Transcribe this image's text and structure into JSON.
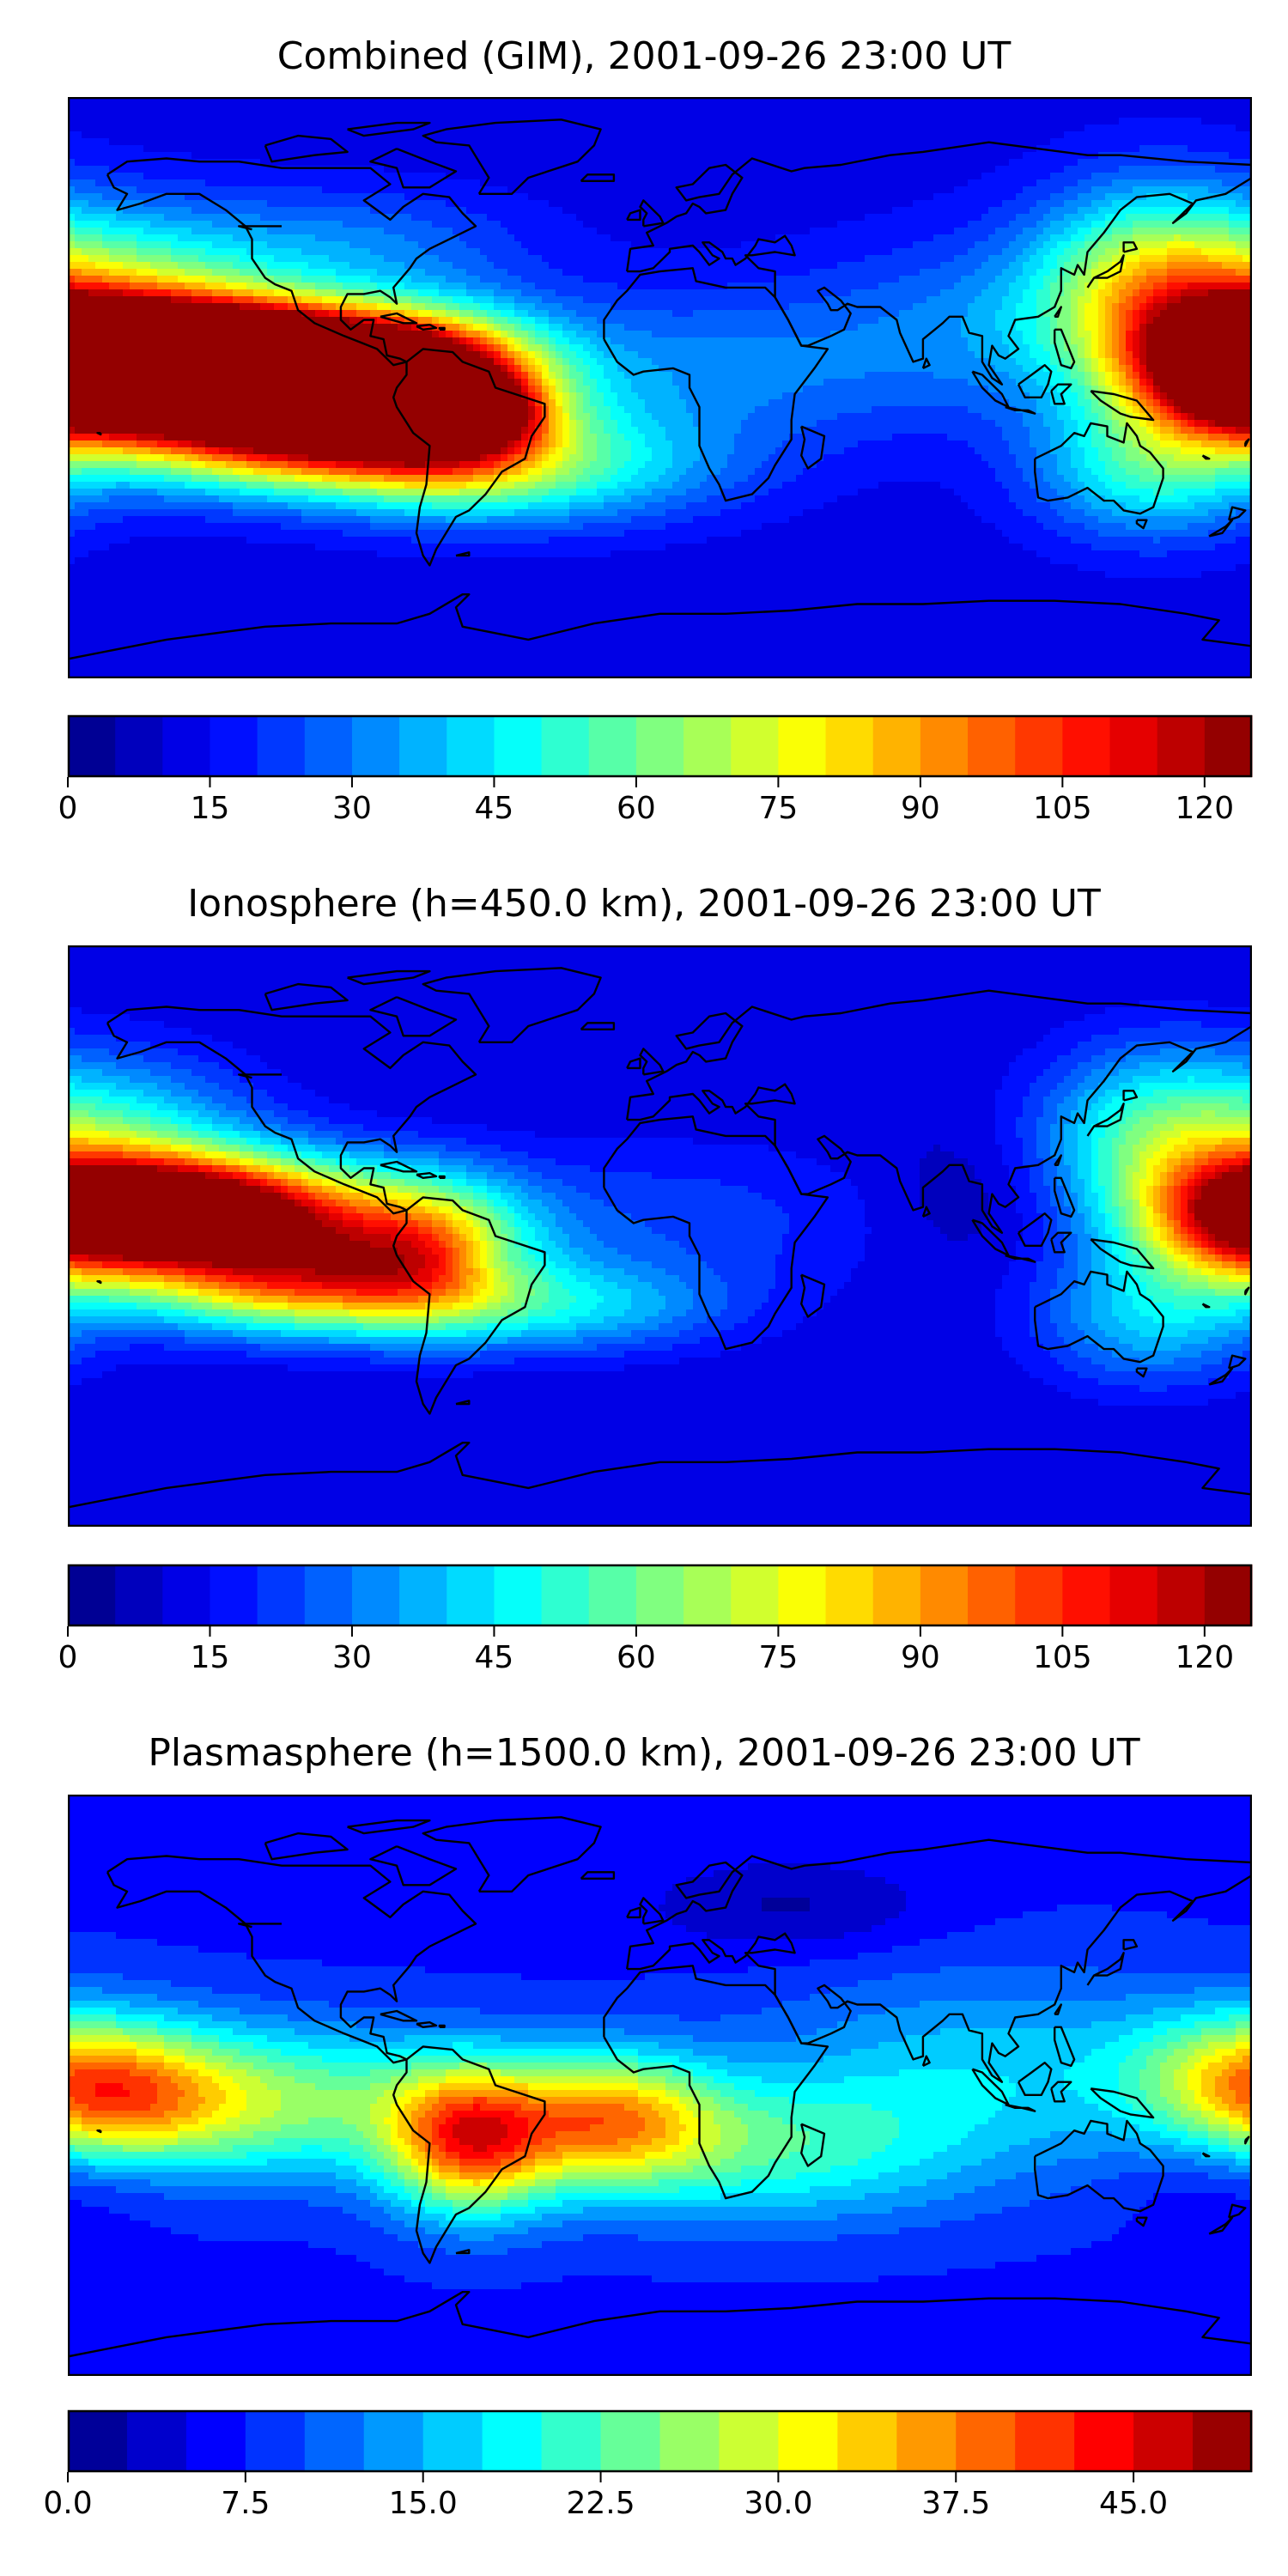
{
  "chart_data": [
    {
      "type": "heatmap",
      "title": "Combined (GIM), 2001-09-26 23:00 UT",
      "colormap": "jet",
      "colorbar": {
        "min": 0,
        "max": 125,
        "levels": 25,
        "ticks": [
          "0",
          "15",
          "30",
          "45",
          "60",
          "75",
          "90",
          "105",
          "120"
        ],
        "tick_values": [
          0,
          15,
          30,
          45,
          60,
          75,
          90,
          105,
          120
        ]
      },
      "blobs": [
        {
          "lon": -145,
          "lat": 8,
          "value": 125,
          "sx": 30,
          "sy": 12
        },
        {
          "lon": -120,
          "lat": 6,
          "value": 100,
          "sx": 45,
          "sy": 14
        },
        {
          "lon": -95,
          "lat": 5,
          "value": 95,
          "sx": 30,
          "sy": 12
        },
        {
          "lon": -110,
          "lat": -15,
          "value": 95,
          "sx": 40,
          "sy": 12
        },
        {
          "lon": -65,
          "lat": -5,
          "value": 75,
          "sx": 22,
          "sy": 16
        },
        {
          "lon": -48,
          "lat": -8,
          "value": 38,
          "sx": 10,
          "sy": 7
        },
        {
          "lon": -40,
          "lat": -25,
          "value": 50,
          "sx": 40,
          "sy": 12
        },
        {
          "lon": -165,
          "lat": 30,
          "value": 55,
          "sx": 35,
          "sy": 18
        },
        {
          "lon": 178,
          "lat": 5,
          "value": 110,
          "sx": 22,
          "sy": 14
        },
        {
          "lon": 150,
          "lat": 30,
          "value": 65,
          "sx": 25,
          "sy": 22
        },
        {
          "lon": 150,
          "lat": -25,
          "value": 50,
          "sx": 25,
          "sy": 15
        },
        {
          "lon": 10,
          "lat": 5,
          "value": 30,
          "sx": 50,
          "sy": 18
        },
        {
          "lon": 100,
          "lat": 20,
          "value": 28,
          "sx": 40,
          "sy": 20
        },
        {
          "lon": -90,
          "lat": 45,
          "value": 28,
          "sx": 35,
          "sy": 12
        }
      ],
      "background": 12
    },
    {
      "type": "heatmap",
      "title": "Ionosphere  (h=450.0 km), 2001-09-26 23:00 UT",
      "colormap": "jet",
      "colorbar": {
        "min": 0,
        "max": 125,
        "levels": 25,
        "ticks": [
          "0",
          "15",
          "30",
          "45",
          "60",
          "75",
          "90",
          "105",
          "120"
        ],
        "tick_values": [
          0,
          15,
          30,
          45,
          60,
          75,
          90,
          105,
          120
        ]
      },
      "blobs": [
        {
          "lon": -145,
          "lat": 8,
          "value": 90,
          "sx": 28,
          "sy": 11
        },
        {
          "lon": -120,
          "lat": 5,
          "value": 75,
          "sx": 45,
          "sy": 14
        },
        {
          "lon": -110,
          "lat": -15,
          "value": 75,
          "sx": 35,
          "sy": 11
        },
        {
          "lon": -70,
          "lat": -5,
          "value": 55,
          "sx": 20,
          "sy": 15
        },
        {
          "lon": -48,
          "lat": -8,
          "value": 5,
          "sx": 8,
          "sy": 5
        },
        {
          "lon": -30,
          "lat": -22,
          "value": 40,
          "sx": 35,
          "sy": 10
        },
        {
          "lon": -165,
          "lat": 30,
          "value": 45,
          "sx": 30,
          "sy": 18
        },
        {
          "lon": 178,
          "lat": 5,
          "value": 75,
          "sx": 22,
          "sy": 14
        },
        {
          "lon": 150,
          "lat": 30,
          "value": 50,
          "sx": 25,
          "sy": 20
        },
        {
          "lon": 150,
          "lat": -25,
          "value": 40,
          "sx": 25,
          "sy": 15
        },
        {
          "lon": 10,
          "lat": 5,
          "value": 22,
          "sx": 45,
          "sy": 18
        },
        {
          "lon": 95,
          "lat": 12,
          "value": 4,
          "sx": 18,
          "sy": 14
        }
      ],
      "background": 10
    },
    {
      "type": "heatmap",
      "title": "Plasmasphere (h=1500.0 km), 2001-09-26 23:00 UT",
      "colormap": "jet",
      "colorbar": {
        "min": 0,
        "max": 50,
        "levels": 20,
        "ticks": [
          "0.0",
          "7.5",
          "15.0",
          "22.5",
          "30.0",
          "37.5",
          "45.0"
        ],
        "tick_values": [
          0,
          7.5,
          15,
          22.5,
          30,
          37.5,
          45
        ]
      },
      "blobs": [
        {
          "lon": -58,
          "lat": -17,
          "value": 36,
          "sx": 18,
          "sy": 16
        },
        {
          "lon": -15,
          "lat": -10,
          "value": 30,
          "sx": 22,
          "sy": 14
        },
        {
          "lon": -120,
          "lat": -5,
          "value": 25,
          "sx": 45,
          "sy": 16
        },
        {
          "lon": -165,
          "lat": -5,
          "value": 22,
          "sx": 25,
          "sy": 15
        },
        {
          "lon": 30,
          "lat": -20,
          "value": 20,
          "sx": 45,
          "sy": 16
        },
        {
          "lon": 178,
          "lat": 5,
          "value": 20,
          "sx": 25,
          "sy": 14
        },
        {
          "lon": 100,
          "lat": 5,
          "value": 16,
          "sx": 50,
          "sy": 22
        },
        {
          "lon": 40,
          "lat": 55,
          "value": 2,
          "sx": 30,
          "sy": 10
        },
        {
          "lon": -170,
          "lat": -30,
          "value": 4,
          "sx": 20,
          "sy": 10
        },
        {
          "lon": 160,
          "lat": -30,
          "value": 5,
          "sx": 15,
          "sy": 10
        }
      ],
      "background": 7
    }
  ]
}
